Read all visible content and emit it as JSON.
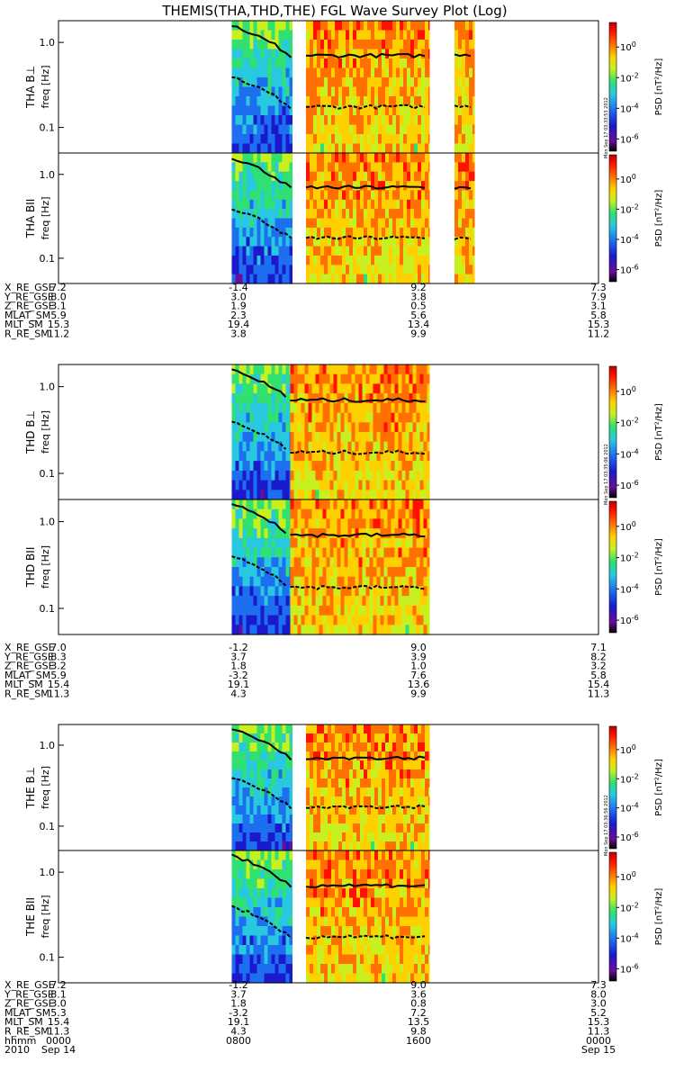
{
  "title": "THEMIS(THA,THD,THE) FGL Wave Survey Plot (Log)",
  "freq_ticks": [
    {
      "value": 1.0,
      "label": "1.0"
    },
    {
      "value": 0.1,
      "label": "0.1"
    }
  ],
  "freq_range_hz": [
    0.05,
    1.8
  ],
  "cbar_ticks": [
    {
      "exp": 0,
      "label": "10",
      "sup": "0"
    },
    {
      "exp": -2,
      "label": "10",
      "sup": "-2"
    },
    {
      "exp": -4,
      "label": "10",
      "sup": "-4"
    },
    {
      "exp": -6,
      "label": "10",
      "sup": "-6"
    }
  ],
  "cbar_range_log": [
    -6.8,
    1.6
  ],
  "cbar_label": "PSD [nT²/Hz]",
  "colors": {
    "scale": [
      "#000000",
      "#6a0d9a",
      "#1a1acc",
      "#1e6ef0",
      "#28c8e0",
      "#30e070",
      "#c8f020",
      "#ffd000",
      "#ff7000",
      "#ff1000",
      "#c00000"
    ]
  },
  "probes": [
    {
      "id": "THA",
      "panels": [
        {
          "ylabel": "THA B⊥",
          "freq_label": "freq [Hz]",
          "stamp": "Mon Sep 17 03:33:53 2012"
        },
        {
          "ylabel": "THA BII",
          "freq_label": "freq [Hz]",
          "stamp": ""
        }
      ],
      "data_segments_hours": [
        [
          7.7,
          10.4
        ],
        [
          11.0,
          16.5
        ],
        [
          17.6,
          18.5
        ]
      ],
      "eph": [
        {
          "name": "X_RE_GSE",
          "values": [
            "7.2",
            "-1.4",
            "9.2",
            "7.3"
          ]
        },
        {
          "name": "Y_RE_GSE",
          "values": [
            "8.0",
            "3.0",
            "3.8",
            "7.9"
          ]
        },
        {
          "name": "Z_RE_GSE",
          "values": [
            "3.1",
            "1.9",
            "0.5",
            "3.1"
          ]
        },
        {
          "name": "MLAT_SM",
          "values": [
            "5.9",
            "2.3",
            "5.6",
            "5.8"
          ]
        },
        {
          "name": "MLT_SM",
          "values": [
            "15.3",
            "19.4",
            "13.4",
            "15.3"
          ]
        },
        {
          "name": "R_RE_SM",
          "values": [
            "11.2",
            "3.8",
            "9.9",
            "11.2"
          ]
        }
      ]
    },
    {
      "id": "THD",
      "panels": [
        {
          "ylabel": "THD B⊥",
          "freq_label": "freq [Hz]",
          "stamp": "Mon Sep 17 03:35:06 2012"
        },
        {
          "ylabel": "THD BII",
          "freq_label": "freq [Hz]",
          "stamp": ""
        }
      ],
      "data_segments_hours": [
        [
          7.7,
          10.3
        ],
        [
          10.3,
          16.5
        ]
      ],
      "eph": [
        {
          "name": "X_RE_GSE",
          "values": [
            "7.0",
            "-1.2",
            "9.0",
            "7.1"
          ]
        },
        {
          "name": "Y_RE_GSE",
          "values": [
            "8.3",
            "3.7",
            "3.9",
            "8.2"
          ]
        },
        {
          "name": "Z_RE_GSE",
          "values": [
            "3.2",
            "1.8",
            "1.0",
            "3.2"
          ]
        },
        {
          "name": "MLAT_SM",
          "values": [
            "5.9",
            "-3.2",
            "7.6",
            "5.8"
          ]
        },
        {
          "name": "MLT_SM",
          "values": [
            "15.4",
            "19.1",
            "13.6",
            "15.4"
          ]
        },
        {
          "name": "R_RE_SM",
          "values": [
            "11.3",
            "4.3",
            "9.9",
            "11.3"
          ]
        }
      ]
    },
    {
      "id": "THE",
      "panels": [
        {
          "ylabel": "THE B⊥",
          "freq_label": "freq [Hz]",
          "stamp": "Mon Sep 17 03:36:56 2012"
        },
        {
          "ylabel": "THE BII",
          "freq_label": "freq [Hz]",
          "stamp": ""
        }
      ],
      "data_segments_hours": [
        [
          7.7,
          10.4
        ],
        [
          11.0,
          16.5
        ]
      ],
      "eph": [
        {
          "name": "X_RE_GSE",
          "values": [
            "7.2",
            "-1.2",
            "9.0",
            "7.3"
          ]
        },
        {
          "name": "Y_RE_GSE",
          "values": [
            "8.1",
            "3.7",
            "3.6",
            "8.0"
          ]
        },
        {
          "name": "Z_RE_GSE",
          "values": [
            "3.0",
            "1.8",
            "0.8",
            "3.0"
          ]
        },
        {
          "name": "MLAT_SM",
          "values": [
            "5.3",
            "-3.2",
            "7.2",
            "5.2"
          ]
        },
        {
          "name": "MLT_SM",
          "values": [
            "15.4",
            "19.1",
            "13.5",
            "15.3"
          ]
        },
        {
          "name": "R_RE_SM",
          "values": [
            "11.3",
            "4.3",
            "9.8",
            "11.3"
          ]
        }
      ]
    }
  ],
  "time_axis": {
    "range_hours": [
      0,
      24
    ],
    "rows": [
      {
        "name": "hhmm",
        "values": [
          "0000",
          "0800",
          "1600",
          "0000"
        ]
      },
      {
        "name": "2010",
        "values": [
          "Sep 14",
          "",
          "",
          "Sep 15"
        ]
      }
    ]
  },
  "chart_data": {
    "type": "heatmap",
    "title": "THEMIS(THA,THD,THE) FGL Wave Survey Plot (Log)",
    "x_label": "hhmm",
    "x_ticks": [
      "0000",
      "0800",
      "1600",
      "0000"
    ],
    "y_label": "freq [Hz]",
    "y_scale": "log",
    "y_ticks": [
      1.0,
      0.1
    ],
    "colorbar_label": "PSD [nT²/Hz]",
    "colorbar_scale": "log",
    "colorbar_ticks": [
      "10^0",
      "10^-2",
      "10^-4",
      "10^-6"
    ],
    "panels": [
      "THA B⊥",
      "THA BII",
      "THD B⊥",
      "THD BII",
      "THE B⊥",
      "THE BII"
    ]
  }
}
